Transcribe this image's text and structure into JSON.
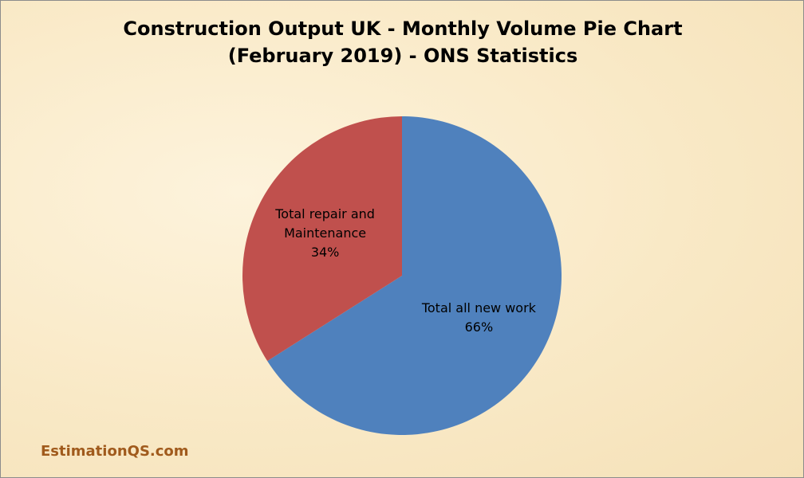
{
  "chart_data": {
    "type": "pie",
    "title": "Construction Output UK - Monthly Volume Pie Chart (February 2019) - ONS Statistics",
    "categories": [
      "Total all new work",
      "Total repair and Maintenance"
    ],
    "values": [
      66,
      34
    ],
    "value_labels": [
      "66%",
      "34%"
    ],
    "colors": [
      "#4f81bd",
      "#c0504d"
    ],
    "annotation": "EstimationQS.com"
  }
}
